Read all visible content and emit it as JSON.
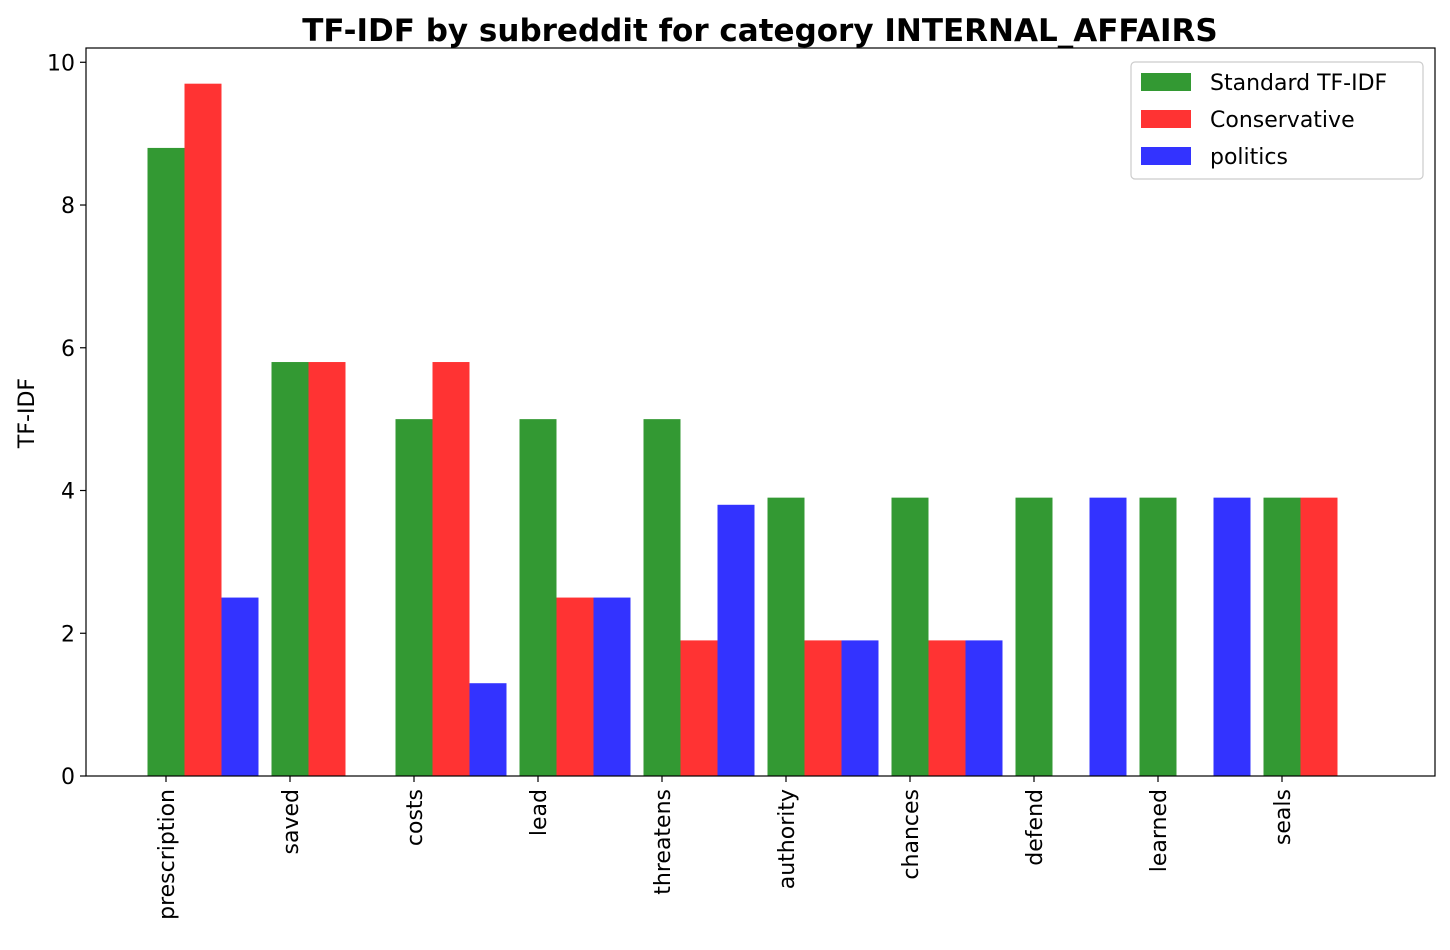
{
  "chart_data": {
    "type": "bar",
    "title": "TF-IDF by subreddit for category INTERNAL_AFFAIRS",
    "xlabel": "",
    "ylabel": "TF-IDF",
    "ylim": [
      0,
      10.2
    ],
    "yticks": [
      0,
      2,
      4,
      6,
      8,
      10
    ],
    "categories": [
      "prescription",
      "saved",
      "costs",
      "lead",
      "threatens",
      "authority",
      "chances",
      "defend",
      "learned",
      "seals"
    ],
    "series": [
      {
        "name": "Standard TF-IDF",
        "color": "#339933",
        "values": [
          8.8,
          5.8,
          5.0,
          5.0,
          5.0,
          3.9,
          3.9,
          3.9,
          3.9,
          3.9
        ]
      },
      {
        "name": "Conservative",
        "color": "#ff3333",
        "values": [
          9.7,
          5.8,
          5.8,
          2.5,
          1.9,
          1.9,
          1.9,
          0,
          0,
          3.9
        ]
      },
      {
        "name": "politics",
        "color": "#3333ff",
        "values": [
          2.5,
          0,
          1.3,
          2.5,
          3.8,
          1.9,
          1.9,
          3.9,
          3.9,
          0
        ]
      }
    ],
    "legend_position": "top-right",
    "grid": false
  }
}
